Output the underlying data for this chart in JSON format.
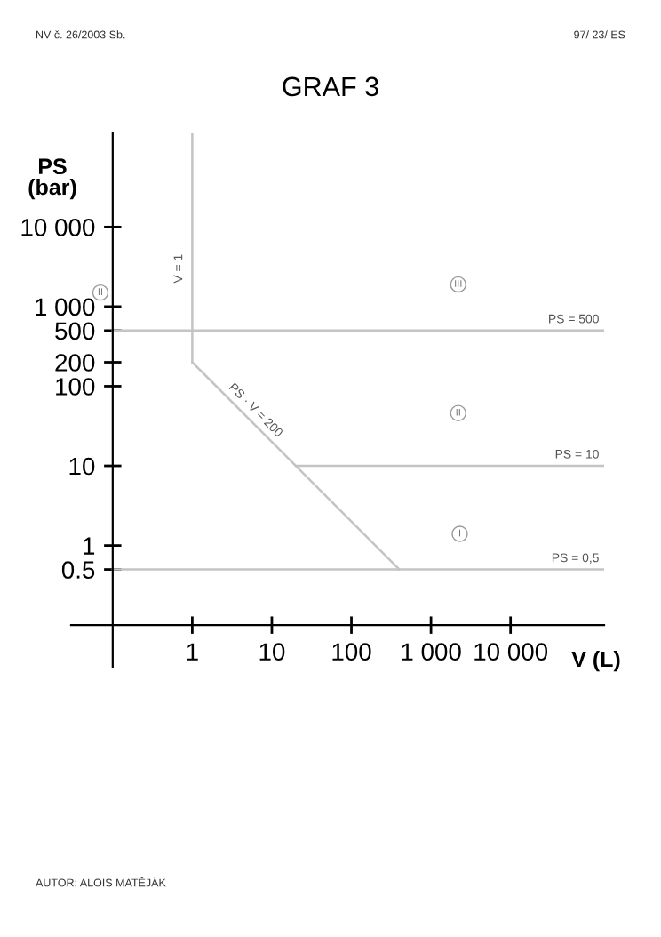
{
  "chart_data": {
    "type": "line",
    "title": "GRAF 3",
    "xlabel": "V (L)",
    "ylabel": "PS\n(bar)",
    "log": "xy",
    "grid": false,
    "xlim": [
      0.03,
      150000
    ],
    "ylim": [
      0.03,
      150000
    ],
    "xticks": [
      1,
      10,
      100,
      {
        "value": 1000,
        "label": "1 000"
      },
      {
        "value": 10000,
        "label": "10 000"
      }
    ],
    "yticks": [
      0.5,
      1,
      10,
      100,
      200,
      500,
      {
        "value": 1000,
        "label": "1 000"
      },
      {
        "value": 10000,
        "label": "10 000"
      }
    ],
    "series": [
      {
        "color": "#c4c4c4",
        "x": [
          1,
          1
        ],
        "values": [
          200,
          150000
        ]
      },
      {
        "color": "#c4c4c4",
        "x": [
          1,
          400
        ],
        "values": [
          200,
          0.5
        ]
      },
      {
        "color": "#c4c4c4",
        "x": [
          0.1,
          150000
        ],
        "values": [
          500,
          500
        ]
      },
      {
        "color": "#c4c4c4",
        "x": [
          20,
          150000
        ],
        "values": [
          10,
          10
        ]
      },
      {
        "color": "#c4c4c4",
        "x": [
          0.1,
          150000
        ],
        "values": [
          0.5,
          0.5
        ]
      }
    ],
    "annotations": [
      "NV č. 26/2003 Sb.",
      "97/ 23/ ES",
      "AUTOR: ALOIS MATĚJÁK",
      {
        "text": "PS = 500",
        "x": 150000,
        "y": 500
      },
      {
        "text": "PS = 10",
        "x": 150000,
        "y": 10
      },
      {
        "text": "PS = 0,5",
        "x": 150000,
        "y": 0.5
      },
      {
        "text": "V = 1",
        "x": 1,
        "y": 3000
      },
      {
        "text": "PS · V = 200",
        "x": 5,
        "y": 40
      },
      {
        "text": "II",
        "x": 0.07,
        "y": 1500
      },
      {
        "text": "III",
        "x": 2200,
        "y": 1900
      },
      {
        "text": "II",
        "x": 2200,
        "y": 46
      },
      {
        "text": "I",
        "x": 2300,
        "y": 1.4
      }
    ]
  }
}
